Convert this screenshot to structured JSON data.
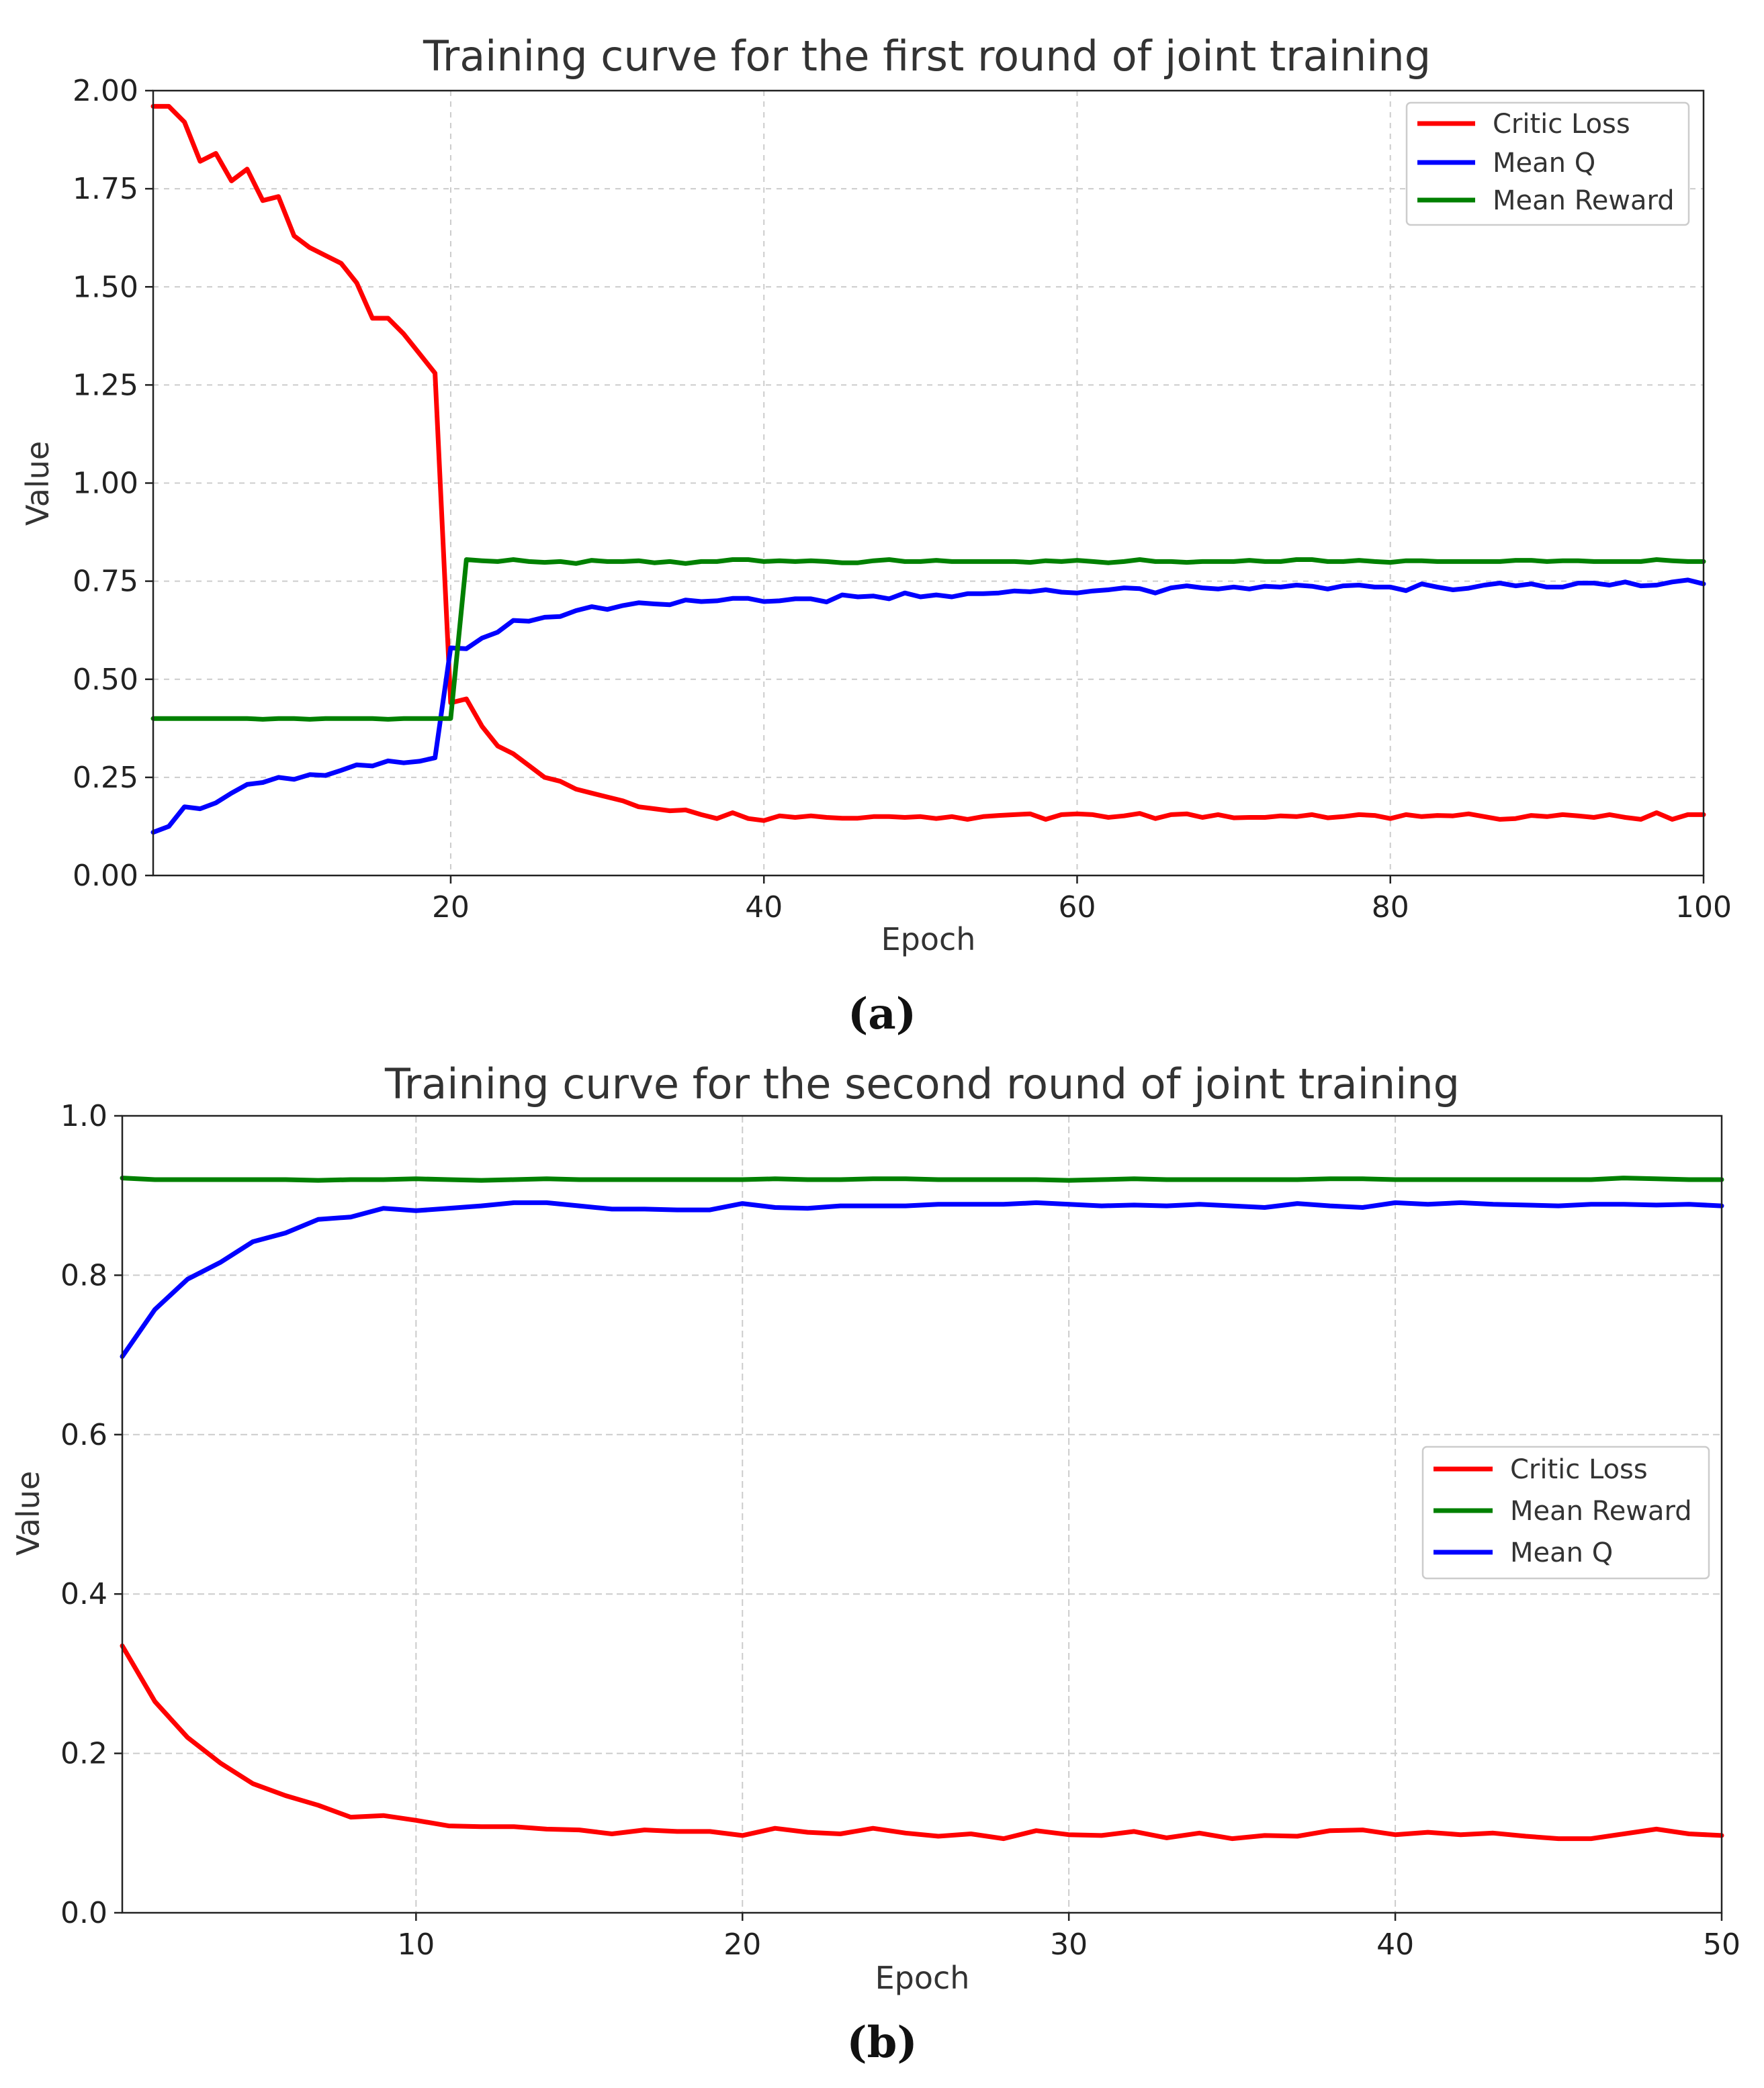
{
  "chart_data": [
    {
      "type": "line",
      "title": "Training curve for the first round of joint training",
      "xlabel": "Epoch",
      "ylabel": "Value",
      "caption": "(a)",
      "xlim": [
        1,
        100
      ],
      "ylim": [
        0,
        2
      ],
      "xticks": [
        20,
        40,
        60,
        80,
        100
      ],
      "yticks": [
        0,
        0.25,
        0.5,
        0.75,
        1.0,
        1.25,
        1.5,
        1.75,
        2.0
      ],
      "ytick_labels": [
        "0.00",
        "0.25",
        "0.50",
        "0.75",
        "1.00",
        "1.25",
        "1.50",
        "1.75",
        "2.00"
      ],
      "grid": true,
      "legend_position": "top-right",
      "series": [
        {
          "name": "Critic Loss",
          "color": "#ff0000",
          "x": [
            1,
            2,
            3,
            4,
            5,
            6,
            7,
            8,
            9,
            10,
            11,
            12,
            13,
            14,
            15,
            16,
            17,
            18,
            19,
            20,
            21,
            22,
            23,
            24,
            25,
            26,
            27,
            28,
            29,
            30,
            31,
            32,
            33,
            34,
            35,
            36,
            37,
            38,
            39,
            40,
            41,
            42,
            43,
            44,
            45,
            46,
            47,
            48,
            49,
            50,
            51,
            52,
            53,
            54,
            55,
            56,
            57,
            58,
            59,
            60,
            61,
            62,
            63,
            64,
            65,
            66,
            67,
            68,
            69,
            70,
            71,
            72,
            73,
            74,
            75,
            76,
            77,
            78,
            79,
            80,
            81,
            82,
            83,
            84,
            85,
            86,
            87,
            88,
            89,
            90,
            91,
            92,
            93,
            94,
            95,
            96,
            97,
            98,
            99,
            100
          ],
          "values": [
            1.96,
            1.96,
            1.92,
            1.82,
            1.84,
            1.77,
            1.8,
            1.72,
            1.73,
            1.63,
            1.6,
            1.58,
            1.56,
            1.51,
            1.42,
            1.42,
            1.38,
            1.33,
            1.28,
            0.44,
            0.45,
            0.38,
            0.33,
            0.31,
            0.28,
            0.25,
            0.24,
            0.22,
            0.21,
            0.2,
            0.19,
            0.175,
            0.17,
            0.165,
            0.167,
            0.155,
            0.145,
            0.16,
            0.145,
            0.14,
            0.152,
            0.148,
            0.152,
            0.148,
            0.146,
            0.146,
            0.15,
            0.15,
            0.148,
            0.15,
            0.145,
            0.15,
            0.143,
            0.15,
            0.153,
            0.155,
            0.157,
            0.143,
            0.155,
            0.157,
            0.155,
            0.148,
            0.152,
            0.158,
            0.145,
            0.155,
            0.157,
            0.148,
            0.155,
            0.147,
            0.148,
            0.148,
            0.152,
            0.15,
            0.155,
            0.147,
            0.15,
            0.155,
            0.153,
            0.145,
            0.155,
            0.15,
            0.153,
            0.152,
            0.157,
            0.15,
            0.143,
            0.145,
            0.153,
            0.15,
            0.155,
            0.152,
            0.148,
            0.155,
            0.148,
            0.143,
            0.16,
            0.143,
            0.155,
            0.155
          ]
        },
        {
          "name": "Mean Q",
          "color": "#0000ff",
          "x": [
            1,
            2,
            3,
            4,
            5,
            6,
            7,
            8,
            9,
            10,
            11,
            12,
            13,
            14,
            15,
            16,
            17,
            18,
            19,
            20,
            21,
            22,
            23,
            24,
            25,
            26,
            27,
            28,
            29,
            30,
            31,
            32,
            33,
            34,
            35,
            36,
            37,
            38,
            39,
            40,
            41,
            42,
            43,
            44,
            45,
            46,
            47,
            48,
            49,
            50,
            51,
            52,
            53,
            54,
            55,
            56,
            57,
            58,
            59,
            60,
            61,
            62,
            63,
            64,
            65,
            66,
            67,
            68,
            69,
            70,
            71,
            72,
            73,
            74,
            75,
            76,
            77,
            78,
            79,
            80,
            81,
            82,
            83,
            84,
            85,
            86,
            87,
            88,
            89,
            90,
            91,
            92,
            93,
            94,
            95,
            96,
            97,
            98,
            99,
            100
          ],
          "values": [
            0.11,
            0.125,
            0.175,
            0.17,
            0.185,
            0.21,
            0.232,
            0.237,
            0.25,
            0.245,
            0.257,
            0.255,
            0.268,
            0.282,
            0.279,
            0.292,
            0.287,
            0.291,
            0.3,
            0.58,
            0.578,
            0.605,
            0.62,
            0.65,
            0.648,
            0.658,
            0.66,
            0.675,
            0.685,
            0.678,
            0.688,
            0.695,
            0.692,
            0.69,
            0.702,
            0.698,
            0.7,
            0.706,
            0.706,
            0.698,
            0.7,
            0.705,
            0.705,
            0.697,
            0.715,
            0.71,
            0.712,
            0.705,
            0.72,
            0.71,
            0.715,
            0.71,
            0.718,
            0.718,
            0.72,
            0.725,
            0.723,
            0.728,
            0.722,
            0.72,
            0.725,
            0.728,
            0.733,
            0.731,
            0.72,
            0.733,
            0.738,
            0.733,
            0.73,
            0.735,
            0.73,
            0.737,
            0.735,
            0.74,
            0.737,
            0.73,
            0.738,
            0.74,
            0.735,
            0.735,
            0.726,
            0.743,
            0.735,
            0.728,
            0.732,
            0.74,
            0.745,
            0.738,
            0.743,
            0.735,
            0.735,
            0.745,
            0.745,
            0.74,
            0.748,
            0.738,
            0.74,
            0.748,
            0.753,
            0.743
          ]
        },
        {
          "name": "Mean Reward",
          "color": "#008000",
          "x": [
            1,
            2,
            3,
            4,
            5,
            6,
            7,
            8,
            9,
            10,
            11,
            12,
            13,
            14,
            15,
            16,
            17,
            18,
            19,
            20,
            21,
            22,
            23,
            24,
            25,
            26,
            27,
            28,
            29,
            30,
            31,
            32,
            33,
            34,
            35,
            36,
            37,
            38,
            39,
            40,
            41,
            42,
            43,
            44,
            45,
            46,
            47,
            48,
            49,
            50,
            51,
            52,
            53,
            54,
            55,
            56,
            57,
            58,
            59,
            60,
            61,
            62,
            63,
            64,
            65,
            66,
            67,
            68,
            69,
            70,
            71,
            72,
            73,
            74,
            75,
            76,
            77,
            78,
            79,
            80,
            81,
            82,
            83,
            84,
            85,
            86,
            87,
            88,
            89,
            90,
            91,
            92,
            93,
            94,
            95,
            96,
            97,
            98,
            99,
            100
          ],
          "values": [
            0.4,
            0.4,
            0.4,
            0.4,
            0.4,
            0.4,
            0.4,
            0.398,
            0.4,
            0.4,
            0.398,
            0.4,
            0.4,
            0.4,
            0.4,
            0.398,
            0.4,
            0.4,
            0.4,
            0.4,
            0.805,
            0.802,
            0.8,
            0.805,
            0.8,
            0.798,
            0.8,
            0.795,
            0.803,
            0.8,
            0.8,
            0.802,
            0.797,
            0.8,
            0.795,
            0.8,
            0.8,
            0.805,
            0.805,
            0.8,
            0.802,
            0.8,
            0.802,
            0.8,
            0.797,
            0.797,
            0.802,
            0.805,
            0.8,
            0.8,
            0.803,
            0.8,
            0.8,
            0.8,
            0.8,
            0.8,
            0.798,
            0.802,
            0.8,
            0.803,
            0.8,
            0.797,
            0.8,
            0.805,
            0.8,
            0.8,
            0.798,
            0.8,
            0.8,
            0.8,
            0.803,
            0.8,
            0.8,
            0.805,
            0.805,
            0.8,
            0.8,
            0.803,
            0.8,
            0.798,
            0.802,
            0.802,
            0.8,
            0.8,
            0.8,
            0.8,
            0.8,
            0.803,
            0.803,
            0.8,
            0.802,
            0.802,
            0.8,
            0.8,
            0.8,
            0.8,
            0.805,
            0.802,
            0.8,
            0.8
          ]
        }
      ]
    },
    {
      "type": "line",
      "title": "Training curve for the second round of joint training",
      "xlabel": "Epoch",
      "ylabel": "Value",
      "caption": "(b)",
      "xlim": [
        1,
        50
      ],
      "ylim": [
        0,
        1
      ],
      "xticks": [
        10,
        20,
        30,
        40,
        50
      ],
      "yticks": [
        0,
        0.2,
        0.4,
        0.6,
        0.8,
        1.0
      ],
      "ytick_labels": [
        "0.0",
        "0.2",
        "0.4",
        "0.6",
        "0.8",
        "1.0"
      ],
      "grid": true,
      "legend_position": "center-right",
      "series": [
        {
          "name": "Critic Loss",
          "color": "#ff0000",
          "x": [
            1,
            2,
            3,
            4,
            5,
            6,
            7,
            8,
            9,
            10,
            11,
            12,
            13,
            14,
            15,
            16,
            17,
            18,
            19,
            20,
            21,
            22,
            23,
            24,
            25,
            26,
            27,
            28,
            29,
            30,
            31,
            32,
            33,
            34,
            35,
            36,
            37,
            38,
            39,
            40,
            41,
            42,
            43,
            44,
            45,
            46,
            47,
            48,
            49,
            50
          ],
          "values": [
            0.335,
            0.265,
            0.22,
            0.188,
            0.162,
            0.147,
            0.135,
            0.12,
            0.122,
            0.116,
            0.109,
            0.108,
            0.108,
            0.105,
            0.104,
            0.099,
            0.104,
            0.102,
            0.102,
            0.097,
            0.106,
            0.101,
            0.099,
            0.106,
            0.1,
            0.096,
            0.099,
            0.093,
            0.103,
            0.098,
            0.097,
            0.102,
            0.094,
            0.1,
            0.093,
            0.097,
            0.096,
            0.103,
            0.104,
            0.098,
            0.101,
            0.098,
            0.1,
            0.096,
            0.093,
            0.093,
            0.099,
            0.105,
            0.099,
            0.097
          ]
        },
        {
          "name": "Mean Reward",
          "color": "#008000",
          "x": [
            1,
            2,
            3,
            4,
            5,
            6,
            7,
            8,
            9,
            10,
            11,
            12,
            13,
            14,
            15,
            16,
            17,
            18,
            19,
            20,
            21,
            22,
            23,
            24,
            25,
            26,
            27,
            28,
            29,
            30,
            31,
            32,
            33,
            34,
            35,
            36,
            37,
            38,
            39,
            40,
            41,
            42,
            43,
            44,
            45,
            46,
            47,
            48,
            49,
            50
          ],
          "values": [
            0.922,
            0.92,
            0.92,
            0.92,
            0.92,
            0.92,
            0.919,
            0.92,
            0.92,
            0.921,
            0.92,
            0.919,
            0.92,
            0.921,
            0.92,
            0.92,
            0.92,
            0.92,
            0.92,
            0.92,
            0.921,
            0.92,
            0.92,
            0.921,
            0.921,
            0.92,
            0.92,
            0.92,
            0.92,
            0.919,
            0.92,
            0.921,
            0.92,
            0.92,
            0.92,
            0.92,
            0.92,
            0.921,
            0.921,
            0.92,
            0.92,
            0.92,
            0.92,
            0.92,
            0.92,
            0.92,
            0.922,
            0.921,
            0.92,
            0.92
          ]
        },
        {
          "name": "Mean Q",
          "color": "#0000ff",
          "x": [
            1,
            2,
            3,
            4,
            5,
            6,
            7,
            8,
            9,
            10,
            11,
            12,
            13,
            14,
            15,
            16,
            17,
            18,
            19,
            20,
            21,
            22,
            23,
            24,
            25,
            26,
            27,
            28,
            29,
            30,
            31,
            32,
            33,
            34,
            35,
            36,
            37,
            38,
            39,
            40,
            41,
            42,
            43,
            44,
            45,
            46,
            47,
            48,
            49,
            50
          ],
          "values": [
            0.698,
            0.757,
            0.795,
            0.816,
            0.842,
            0.853,
            0.87,
            0.873,
            0.884,
            0.881,
            0.884,
            0.887,
            0.891,
            0.891,
            0.887,
            0.883,
            0.883,
            0.882,
            0.882,
            0.89,
            0.885,
            0.884,
            0.887,
            0.887,
            0.887,
            0.889,
            0.889,
            0.889,
            0.891,
            0.889,
            0.887,
            0.888,
            0.887,
            0.889,
            0.887,
            0.885,
            0.89,
            0.887,
            0.885,
            0.891,
            0.889,
            0.891,
            0.889,
            0.888,
            0.887,
            0.889,
            0.889,
            0.888,
            0.889,
            0.887
          ]
        }
      ]
    }
  ]
}
